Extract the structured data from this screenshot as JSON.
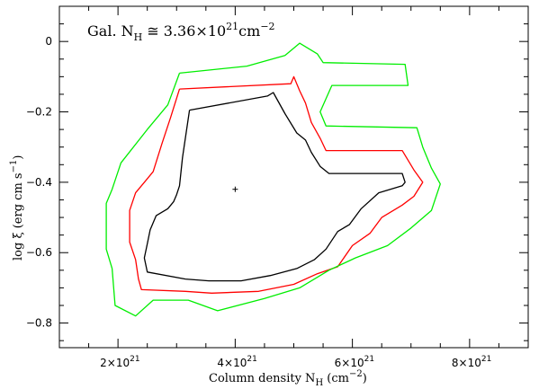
{
  "chart_data": {
    "type": "contour",
    "annotation": {
      "text": "Gal. N",
      "sub": "H",
      "rel": " ≅ 3.36×10",
      "exp": "21",
      "unit": "cm",
      "unit_exp": "−2"
    },
    "xlabel": {
      "text": "Column density N",
      "sub": "H",
      "rest": " (cm",
      "exp": "−2",
      "close": ")"
    },
    "ylabel": {
      "text": "log ξ (erg cm s",
      "exp": "−1",
      "close": ")"
    },
    "xlim": [
      1e+21,
      9e+21
    ],
    "ylim": [
      -0.87,
      0.1
    ],
    "x_ticks": [
      {
        "value": 2e+21,
        "mant": "2×10",
        "exp": "21"
      },
      {
        "value": 4e+21,
        "mant": "4×10",
        "exp": "21"
      },
      {
        "value": 6e+21,
        "mant": "6×10",
        "exp": "21"
      },
      {
        "value": 8e+21,
        "mant": "8×10",
        "exp": "21"
      }
    ],
    "y_ticks": [
      {
        "value": 0,
        "label": "0"
      },
      {
        "value": -0.2,
        "label": "−0.2"
      },
      {
        "value": -0.4,
        "label": "−0.4"
      },
      {
        "value": -0.6,
        "label": "−0.6"
      },
      {
        "value": -0.8,
        "label": "−0.8"
      }
    ],
    "best_fit": {
      "x": 4e+21,
      "y": -0.42
    },
    "contours": [
      {
        "color": "#000000",
        "points": [
          [
            3.22e+21,
            -0.195
          ],
          [
            4.55e+21,
            -0.155
          ],
          [
            4.65e+21,
            -0.145
          ],
          [
            4.85e+21,
            -0.205
          ],
          [
            5.05e+21,
            -0.26
          ],
          [
            5.2e+21,
            -0.28
          ],
          [
            5.3e+21,
            -0.315
          ],
          [
            5.45e+21,
            -0.355
          ],
          [
            5.6e+21,
            -0.375
          ],
          [
            6.85e+21,
            -0.375
          ],
          [
            6.9e+21,
            -0.4
          ],
          [
            6.85e+21,
            -0.41
          ],
          [
            6.45e+21,
            -0.43
          ],
          [
            6.15e+21,
            -0.475
          ],
          [
            5.95e+21,
            -0.52
          ],
          [
            5.75e+21,
            -0.54
          ],
          [
            5.55e+21,
            -0.59
          ],
          [
            5.35e+21,
            -0.62
          ],
          [
            5.05e+21,
            -0.645
          ],
          [
            4.6e+21,
            -0.665
          ],
          [
            4.1e+21,
            -0.68
          ],
          [
            3.55e+21,
            -0.68
          ],
          [
            3.15e+21,
            -0.675
          ],
          [
            2.5e+21,
            -0.655
          ],
          [
            2.45e+21,
            -0.615
          ],
          [
            2.5e+21,
            -0.575
          ],
          [
            2.55e+21,
            -0.535
          ],
          [
            2.65e+21,
            -0.495
          ],
          [
            2.85e+21,
            -0.475
          ],
          [
            2.95e+21,
            -0.455
          ],
          [
            3e+21,
            -0.435
          ],
          [
            3.05e+21,
            -0.41
          ],
          [
            3.1e+21,
            -0.33
          ],
          [
            3.22e+21,
            -0.195
          ]
        ]
      },
      {
        "color": "#ff0000",
        "points": [
          [
            3.05e+21,
            -0.135
          ],
          [
            4.95e+21,
            -0.12
          ],
          [
            5e+21,
            -0.1
          ],
          [
            5.1e+21,
            -0.14
          ],
          [
            5.2e+21,
            -0.175
          ],
          [
            5.3e+21,
            -0.23
          ],
          [
            5.45e+21,
            -0.275
          ],
          [
            5.55e+21,
            -0.31
          ],
          [
            6.85e+21,
            -0.31
          ],
          [
            7.05e+21,
            -0.365
          ],
          [
            7.2e+21,
            -0.4
          ],
          [
            7.05e+21,
            -0.44
          ],
          [
            6.85e+21,
            -0.465
          ],
          [
            6.5e+21,
            -0.5
          ],
          [
            6.3e+21,
            -0.545
          ],
          [
            6e+21,
            -0.58
          ],
          [
            5.75e+21,
            -0.64
          ],
          [
            5.4e+21,
            -0.66
          ],
          [
            5e+21,
            -0.69
          ],
          [
            4.4e+21,
            -0.71
          ],
          [
            3.6e+21,
            -0.715
          ],
          [
            3.15e+21,
            -0.71
          ],
          [
            2.4e+21,
            -0.705
          ],
          [
            2.35e+21,
            -0.675
          ],
          [
            2.3e+21,
            -0.62
          ],
          [
            2.2e+21,
            -0.57
          ],
          [
            2.2e+21,
            -0.48
          ],
          [
            2.3e+21,
            -0.43
          ],
          [
            2.45e+21,
            -0.4
          ],
          [
            2.6e+21,
            -0.37
          ],
          [
            2.75e+21,
            -0.29
          ],
          [
            2.9e+21,
            -0.215
          ],
          [
            3.05e+21,
            -0.135
          ]
        ]
      },
      {
        "color": "#00ee00",
        "points": [
          [
            3.05e+21,
            -0.09
          ],
          [
            4.2e+21,
            -0.07
          ],
          [
            4.85e+21,
            -0.04
          ],
          [
            5.1e+21,
            -0.005
          ],
          [
            5.4e+21,
            -0.035
          ],
          [
            5.5e+21,
            -0.06
          ],
          [
            6.9e+21,
            -0.065
          ],
          [
            6.95e+21,
            -0.125
          ],
          [
            5.65e+21,
            -0.125
          ],
          [
            5.45e+21,
            -0.2
          ],
          [
            5.55e+21,
            -0.24
          ],
          [
            7.1e+21,
            -0.245
          ],
          [
            7.2e+21,
            -0.3
          ],
          [
            7.35e+21,
            -0.36
          ],
          [
            7.5e+21,
            -0.405
          ],
          [
            7.35e+21,
            -0.48
          ],
          [
            7e+21,
            -0.53
          ],
          [
            6.6e+21,
            -0.58
          ],
          [
            6.05e+21,
            -0.615
          ],
          [
            5.6e+21,
            -0.65
          ],
          [
            5.1e+21,
            -0.7
          ],
          [
            4.5e+21,
            -0.73
          ],
          [
            3.7e+21,
            -0.765
          ],
          [
            3.2e+21,
            -0.735
          ],
          [
            2.6e+21,
            -0.735
          ],
          [
            2.3e+21,
            -0.78
          ],
          [
            1.95e+21,
            -0.75
          ],
          [
            1.9e+21,
            -0.645
          ],
          [
            1.8e+21,
            -0.59
          ],
          [
            1.8e+21,
            -0.46
          ],
          [
            1.9e+21,
            -0.42
          ],
          [
            2.05e+21,
            -0.345
          ],
          [
            2.5e+21,
            -0.25
          ],
          [
            2.85e+21,
            -0.18
          ],
          [
            3.05e+21,
            -0.09
          ]
        ]
      }
    ]
  }
}
